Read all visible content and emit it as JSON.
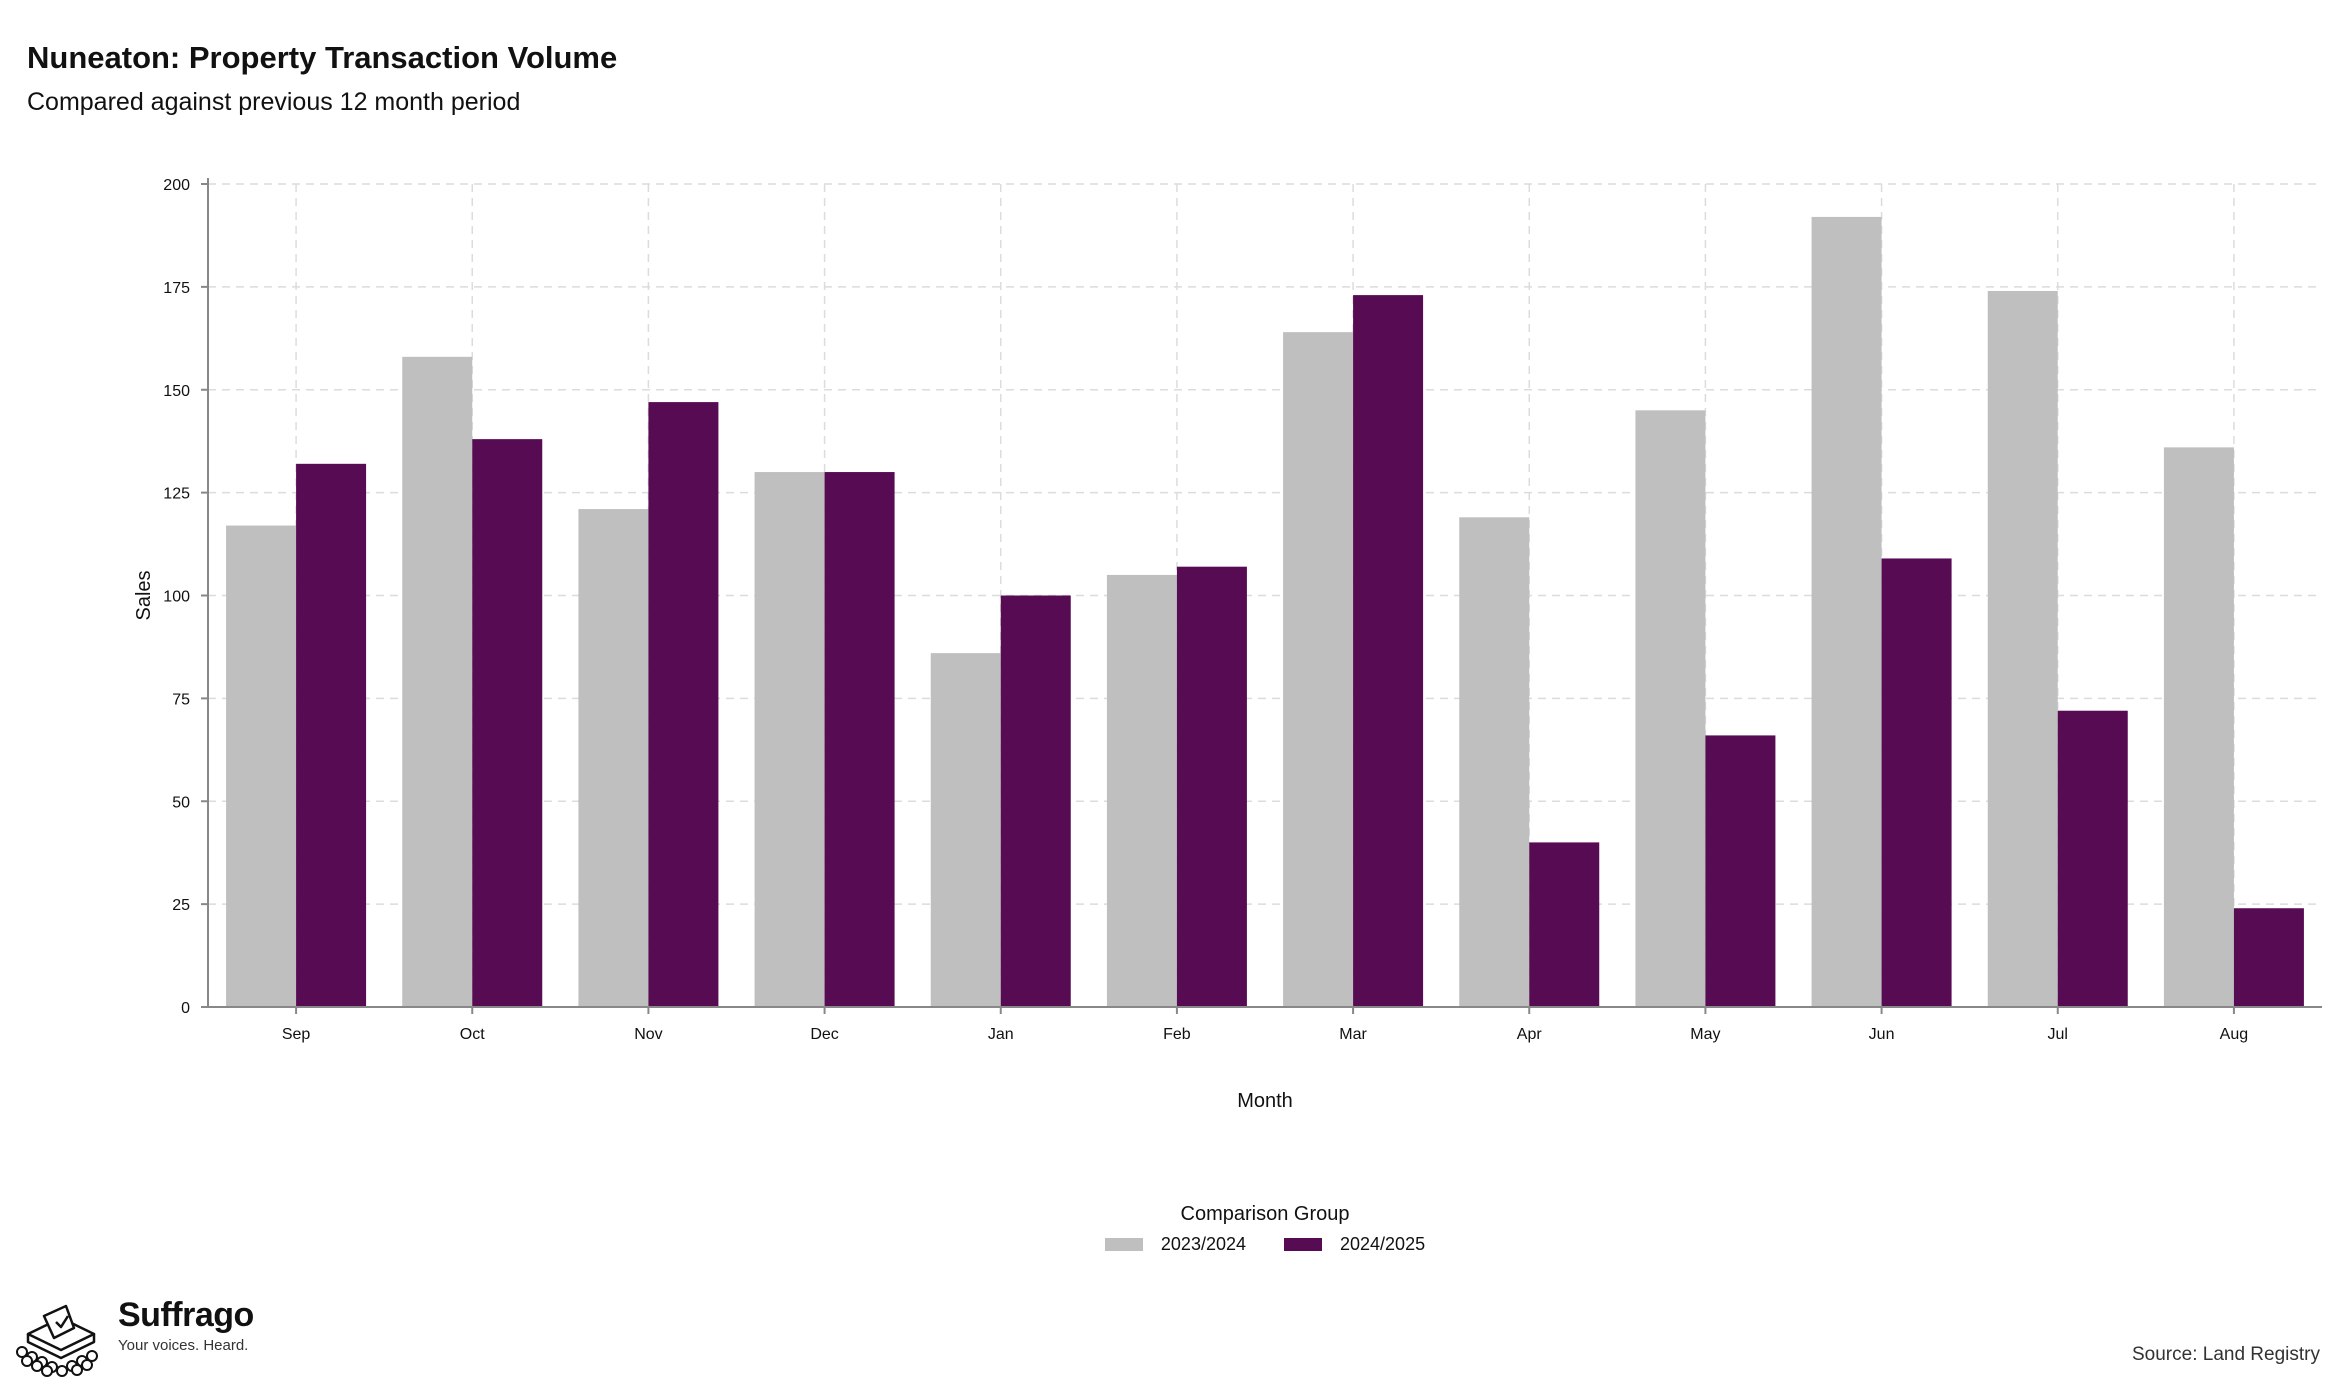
{
  "header": {
    "title": "Nuneaton: Property Transaction Volume",
    "subtitle": "Compared against previous 12 month period"
  },
  "chart_data": {
    "type": "bar",
    "categories": [
      "Sep",
      "Oct",
      "Nov",
      "Dec",
      "Jan",
      "Feb",
      "Mar",
      "Apr",
      "May",
      "Jun",
      "Jul",
      "Aug"
    ],
    "series": [
      {
        "name": "2023/2024",
        "color": "#bfbfbf",
        "values": [
          117,
          158,
          121,
          130,
          86,
          105,
          164,
          119,
          145,
          192,
          174,
          136
        ]
      },
      {
        "name": "2024/2025",
        "color": "#560b52",
        "values": [
          132,
          138,
          147,
          130,
          100,
          107,
          173,
          40,
          66,
          109,
          72,
          24
        ]
      }
    ],
    "xlabel": "Month",
    "ylabel": "Sales",
    "ylim": [
      0,
      200
    ],
    "yticks": [
      0,
      25,
      50,
      75,
      100,
      125,
      150,
      175,
      200
    ],
    "grid": true,
    "legend_title": "Comparison Group",
    "legend_position": "bottom"
  },
  "footer": {
    "brand_name": "Suffrago",
    "brand_tagline": "Your voices. Heard.",
    "source": "Source: Land Registry"
  }
}
